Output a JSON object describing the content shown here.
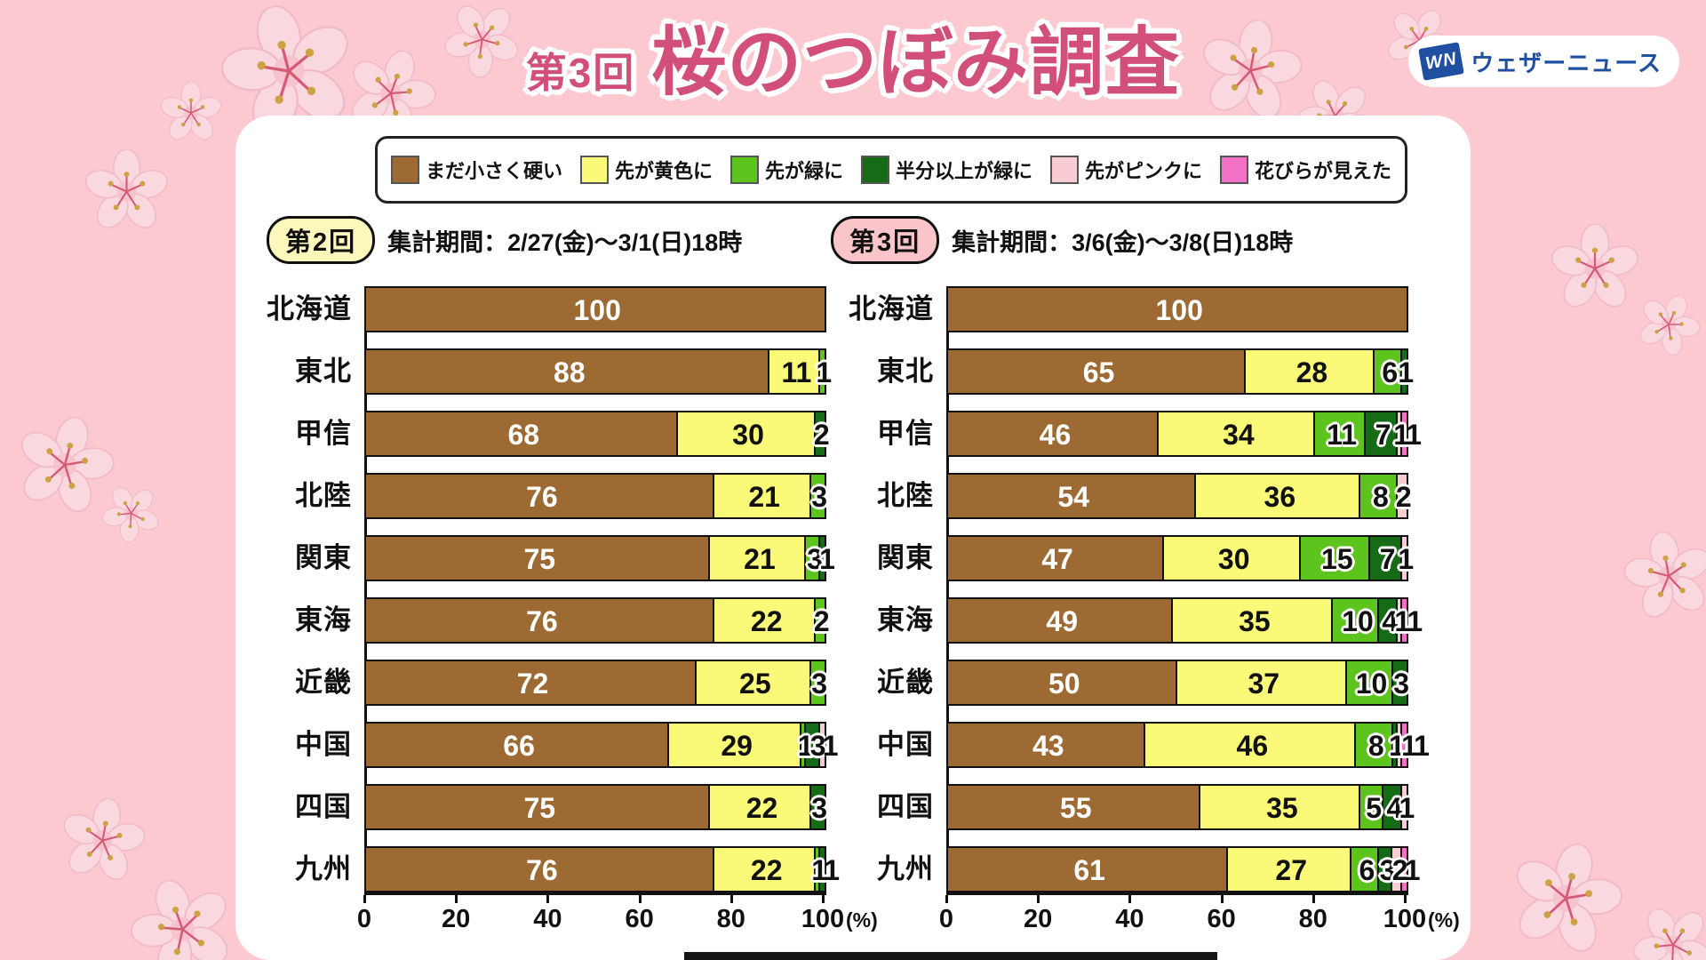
{
  "header": {
    "round_prefix": "第3回",
    "title": "桜のつぼみ調査",
    "logo": {
      "mark": "WN",
      "text": "ウェザーニュース"
    }
  },
  "legend": {
    "items": [
      {
        "label": "まだ小さく硬い",
        "color": "#9c6a32"
      },
      {
        "label": "先が黄色に",
        "color": "#fafa78"
      },
      {
        "label": "先が緑に",
        "color": "#5cc41d"
      },
      {
        "label": "半分以上が緑に",
        "color": "#166b16"
      },
      {
        "label": "先がピンクに",
        "color": "#f9ccd3"
      },
      {
        "label": "花びらが見えた",
        "color": "#f271c7"
      }
    ]
  },
  "charts": [
    {
      "round": "第2回",
      "badge_bg": "#fcf8bb",
      "period": "集計期間：2/27(金)～3/1(日)18時"
    },
    {
      "round": "第3回",
      "badge_bg": "#f9c5c9",
      "period": "集計期間：3/6(金)～3/8(日)18時"
    }
  ],
  "axis": {
    "ticks": [
      "0",
      "20",
      "40",
      "60",
      "80",
      "100"
    ],
    "unit": "(%)"
  },
  "colors": {
    "background": "#fbc9cf",
    "title": "#d14f79",
    "logo_blue": "#1e4fa1",
    "bar_border": "#111111"
  },
  "chart_data": [
    {
      "type": "bar",
      "orientation": "horizontal-stacked",
      "title": "第2回 集計期間：2/27(金)～3/1(日)18時",
      "xlabel": "(%)",
      "xlim": [
        0,
        100
      ],
      "xticks": [
        0,
        20,
        40,
        60,
        80,
        100
      ],
      "categories": [
        "北海道",
        "東北",
        "甲信",
        "北陸",
        "関東",
        "東海",
        "近畿",
        "中国",
        "四国",
        "九州"
      ],
      "series": [
        {
          "name": "まだ小さく硬い",
          "values": [
            100,
            88,
            68,
            76,
            75,
            76,
            72,
            66,
            75,
            76
          ]
        },
        {
          "name": "先が黄色に",
          "values": [
            0,
            11,
            30,
            21,
            21,
            22,
            25,
            29,
            22,
            22
          ]
        },
        {
          "name": "先が緑に",
          "values": [
            0,
            1,
            0,
            3,
            3,
            2,
            3,
            1,
            0,
            1
          ]
        },
        {
          "name": "半分以上が緑に",
          "values": [
            0,
            0,
            2,
            0,
            1,
            0,
            0,
            3,
            3,
            1
          ]
        },
        {
          "name": "先がピンクに",
          "values": [
            0,
            0,
            0,
            0,
            0,
            0,
            0,
            1,
            0,
            0
          ]
        },
        {
          "name": "花びらが見えた",
          "values": [
            0,
            0,
            0,
            0,
            0,
            0,
            0,
            0,
            0,
            0
          ]
        }
      ]
    },
    {
      "type": "bar",
      "orientation": "horizontal-stacked",
      "title": "第3回 集計期間：3/6(金)～3/8(日)18時",
      "xlabel": "(%)",
      "xlim": [
        0,
        100
      ],
      "xticks": [
        0,
        20,
        40,
        60,
        80,
        100
      ],
      "categories": [
        "北海道",
        "東北",
        "甲信",
        "北陸",
        "関東",
        "東海",
        "近畿",
        "中国",
        "四国",
        "九州"
      ],
      "series": [
        {
          "name": "まだ小さく硬い",
          "values": [
            100,
            65,
            46,
            54,
            47,
            49,
            50,
            43,
            55,
            61
          ]
        },
        {
          "name": "先が黄色に",
          "values": [
            0,
            28,
            34,
            36,
            30,
            35,
            37,
            46,
            35,
            27
          ]
        },
        {
          "name": "先が緑に",
          "values": [
            0,
            6,
            11,
            8,
            15,
            10,
            10,
            8,
            5,
            6
          ]
        },
        {
          "name": "半分以上が緑に",
          "values": [
            0,
            1,
            7,
            0,
            7,
            4,
            3,
            1,
            4,
            3
          ]
        },
        {
          "name": "先がピンクに",
          "values": [
            0,
            0,
            1,
            2,
            1,
            1,
            0,
            1,
            1,
            2
          ]
        },
        {
          "name": "花びらが見えた",
          "values": [
            0,
            0,
            1,
            0,
            0,
            1,
            0,
            1,
            0,
            1
          ]
        }
      ]
    }
  ]
}
